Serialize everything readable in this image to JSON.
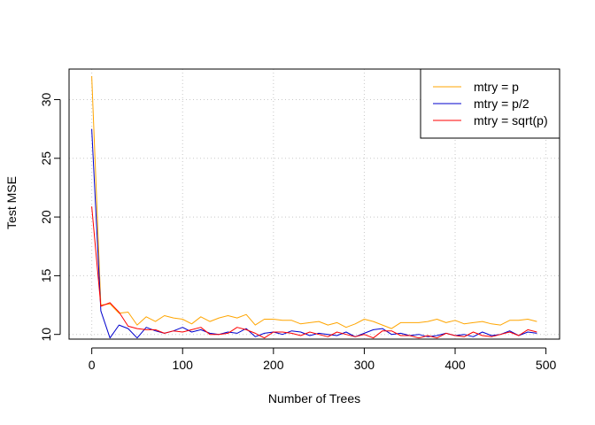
{
  "chart_data": {
    "type": "line",
    "xlabel": "Number of Trees",
    "ylabel": "Test MSE",
    "xlim": [
      -25,
      515
    ],
    "ylim": [
      9.6,
      32.6
    ],
    "x_ticks": [
      0,
      100,
      200,
      300,
      400,
      500
    ],
    "y_ticks": [
      10,
      15,
      20,
      25,
      30
    ],
    "grid": true,
    "grid_style": "dotted",
    "legend_position": "top-right",
    "x": [
      0,
      10,
      20,
      30,
      40,
      50,
      60,
      70,
      80,
      90,
      100,
      110,
      120,
      130,
      140,
      150,
      160,
      170,
      180,
      190,
      200,
      210,
      220,
      230,
      240,
      250,
      260,
      270,
      280,
      290,
      300,
      310,
      320,
      330,
      340,
      350,
      360,
      370,
      380,
      390,
      400,
      410,
      420,
      430,
      440,
      450,
      460,
      470,
      480,
      490
    ],
    "series": [
      {
        "name": "mtry = p",
        "color": "#FFA500",
        "values": [
          32.0,
          12.5,
          12.6,
          11.8,
          11.9,
          10.8,
          11.5,
          11.1,
          11.6,
          11.4,
          11.3,
          10.9,
          11.5,
          11.1,
          11.4,
          11.6,
          11.4,
          11.7,
          10.8,
          11.3,
          11.3,
          11.2,
          11.2,
          10.9,
          11.0,
          11.1,
          10.8,
          11.0,
          10.6,
          10.9,
          11.3,
          11.1,
          10.8,
          10.5,
          11.0,
          11.0,
          11.0,
          11.1,
          11.3,
          11.0,
          11.2,
          10.9,
          11.0,
          11.1,
          10.9,
          10.8,
          11.2,
          11.2,
          11.3,
          11.1
        ]
      },
      {
        "name": "mtry = p/2",
        "color": "#0000CD",
        "values": [
          27.5,
          12.0,
          9.7,
          10.8,
          10.5,
          9.7,
          10.6,
          10.3,
          10.1,
          10.3,
          10.6,
          10.2,
          10.4,
          10.1,
          10.0,
          10.2,
          10.1,
          10.5,
          9.8,
          10.1,
          10.2,
          10.0,
          10.3,
          10.2,
          9.9,
          10.1,
          10.0,
          9.9,
          10.2,
          9.8,
          10.1,
          10.4,
          10.5,
          10.0,
          10.1,
          9.9,
          10.0,
          9.8,
          9.9,
          10.1,
          9.9,
          10.0,
          9.8,
          10.2,
          9.9,
          10.0,
          10.3,
          9.9,
          10.2,
          10.1
        ]
      },
      {
        "name": "mtry = sqrt(p)",
        "color": "#FF0000",
        "values": [
          20.9,
          12.4,
          12.7,
          11.9,
          10.7,
          10.5,
          10.4,
          10.4,
          10.1,
          10.3,
          10.2,
          10.4,
          10.6,
          10.0,
          10.0,
          10.1,
          10.6,
          10.4,
          10.1,
          9.7,
          10.2,
          10.2,
          10.1,
          9.9,
          10.2,
          10.0,
          9.8,
          10.2,
          10.0,
          9.8,
          10.0,
          9.7,
          10.3,
          10.3,
          9.9,
          9.9,
          9.7,
          9.9,
          9.7,
          10.1,
          9.9,
          9.8,
          10.2,
          9.9,
          9.8,
          10.0,
          10.2,
          9.9,
          10.4,
          10.2
        ]
      }
    ]
  }
}
